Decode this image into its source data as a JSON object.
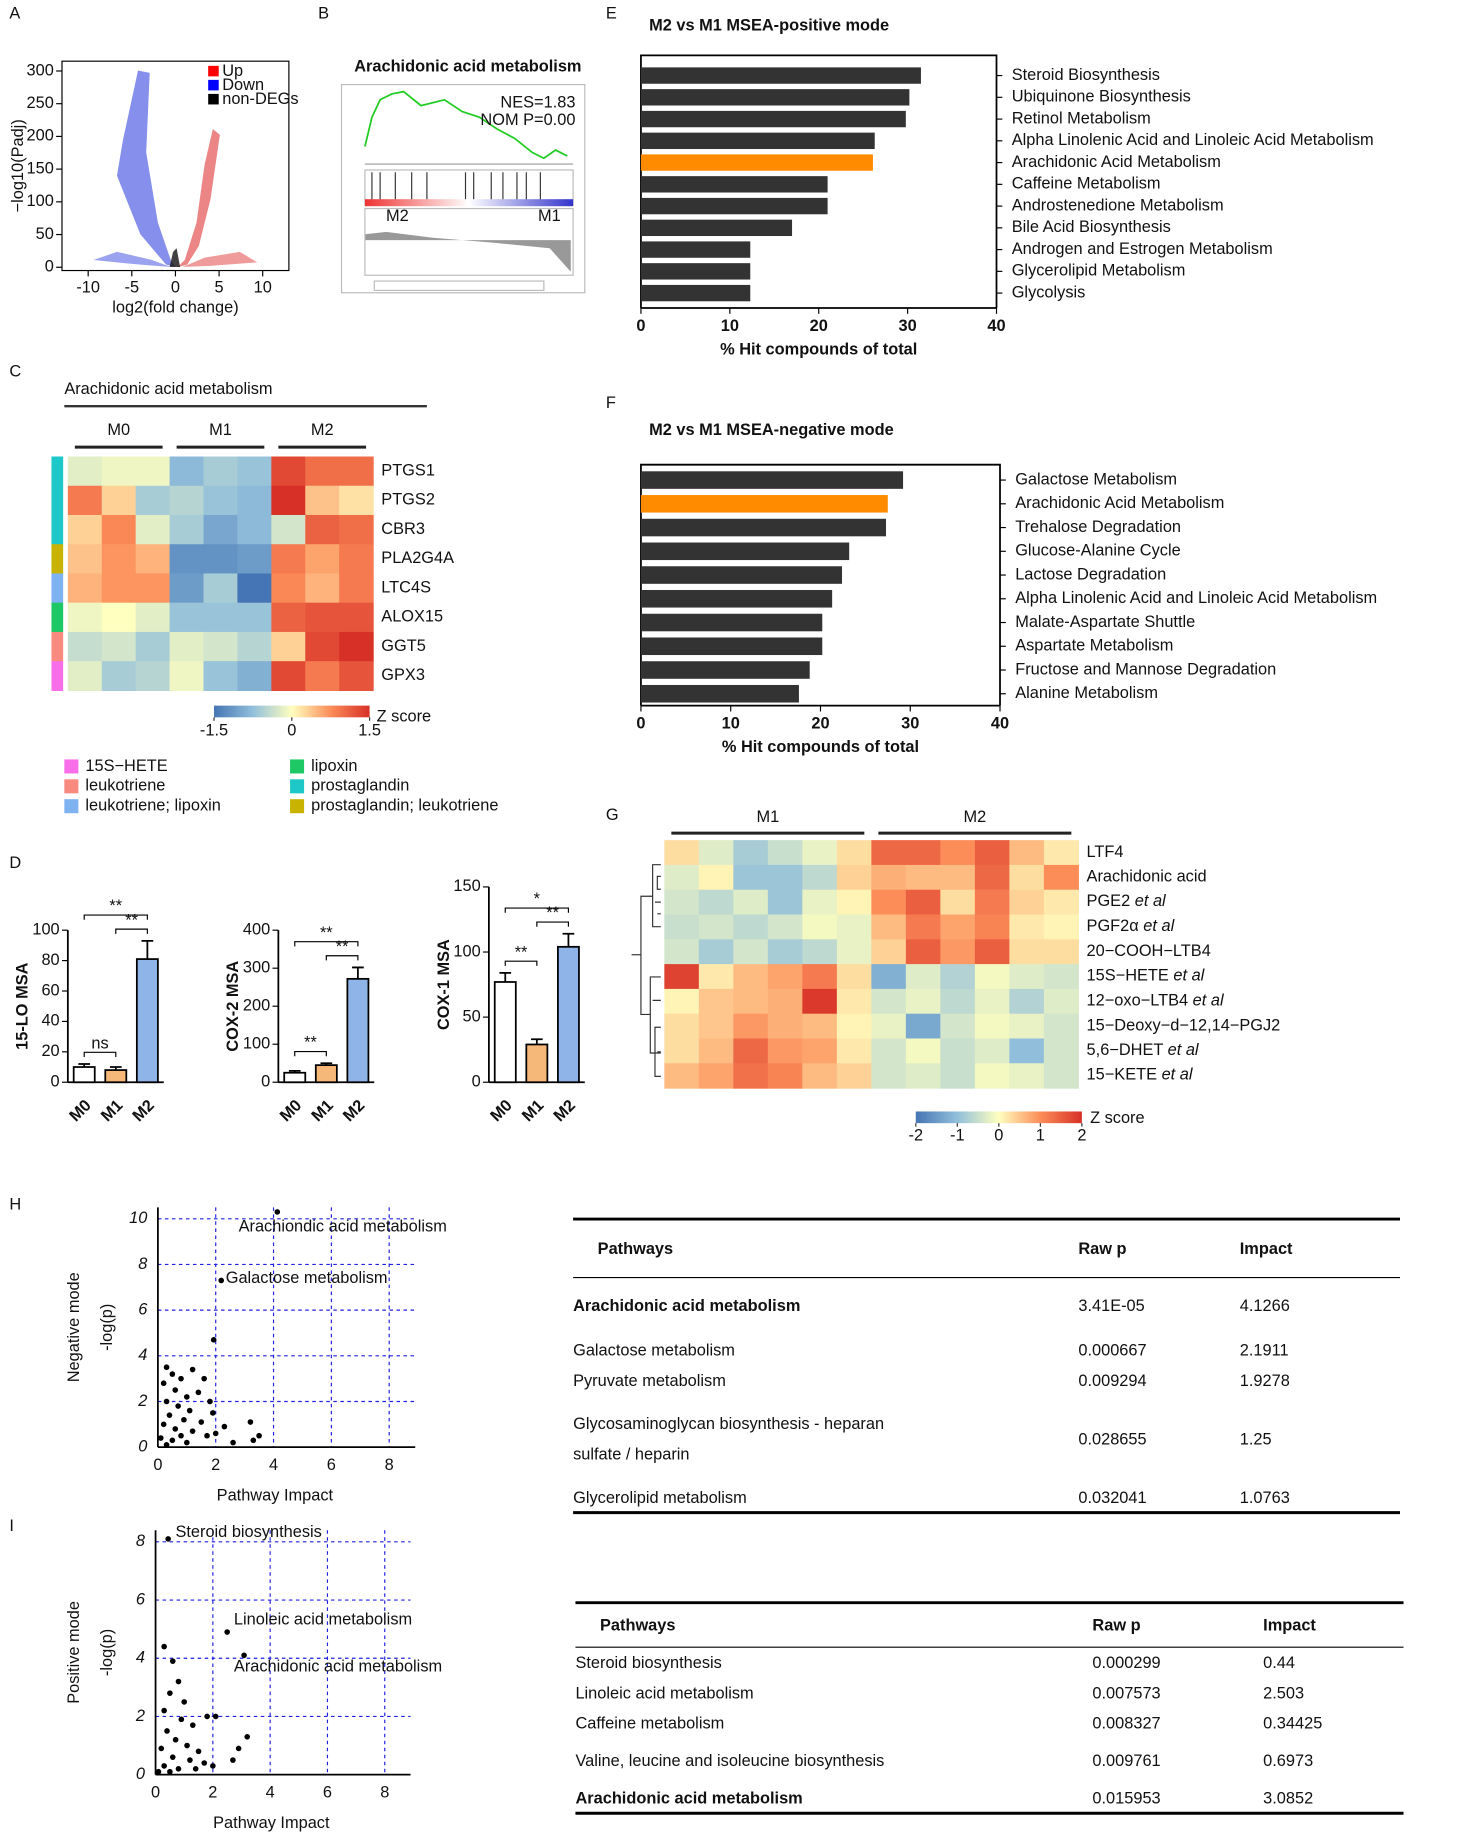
{
  "panel_labels": [
    "A",
    "B",
    "C",
    "D",
    "E",
    "F",
    "G",
    "H",
    "I"
  ],
  "chart_data": [
    {
      "type": "volcano",
      "xlabel": "log2(fold change)",
      "ylabel": "−log10(Padj)",
      "xlim": [
        -13,
        13
      ],
      "ylim": [
        -5,
        315
      ],
      "xticks": [
        -10,
        -5,
        0,
        5,
        10
      ],
      "yticks": [
        0,
        50,
        100,
        150,
        200,
        250,
        300
      ],
      "legend": [
        {
          "name": "Up",
          "color": "#ff0000"
        },
        {
          "name": "Down",
          "color": "#0000ff"
        },
        {
          "name": "non-DEGs",
          "color": "#000000"
        }
      ]
    },
    {
      "type": "gsea",
      "title": "Arachidonic acid metabolism",
      "annotations": [
        "NES=1.83",
        "NOM P=0.00"
      ],
      "groups": [
        "M2",
        "M1"
      ]
    },
    {
      "type": "heatmap",
      "title": "Arachidonic acid metabolism",
      "groups": [
        "M0",
        "M1",
        "M2"
      ],
      "rows": [
        "PTGS1",
        "PTGS2",
        "CBR3",
        "PLA2G4A",
        "LTC4S",
        "ALOX15",
        "GGT5",
        "GPX3"
      ],
      "values": [
        [
          -0.2,
          -0.1,
          -0.1,
          -0.8,
          -0.6,
          -0.7,
          1.3,
          1.0,
          1.0
        ],
        [
          0.9,
          0.3,
          -0.6,
          -0.5,
          -0.7,
          -0.8,
          1.5,
          0.4,
          0.2
        ],
        [
          0.3,
          0.8,
          -0.2,
          -0.6,
          -1.0,
          -0.8,
          -0.3,
          1.1,
          1.0
        ],
        [
          0.4,
          0.7,
          0.5,
          -1.2,
          -1.2,
          -1.1,
          0.9,
          0.6,
          0.9
        ],
        [
          0.5,
          0.7,
          0.7,
          -1.1,
          -0.6,
          -1.5,
          0.8,
          0.5,
          0.9
        ],
        [
          -0.1,
          0.0,
          -0.2,
          -0.7,
          -0.7,
          -0.7,
          1.1,
          1.2,
          1.2
        ],
        [
          -0.4,
          -0.3,
          -0.6,
          -0.2,
          -0.3,
          -0.5,
          0.3,
          1.3,
          1.6
        ],
        [
          -0.2,
          -0.6,
          -0.5,
          -0.1,
          -0.7,
          -0.9,
          1.3,
          0.9,
          1.2
        ]
      ],
      "row_colors": [
        "#1ec8c8",
        "#1ec8c8",
        "#1ec8c8",
        "#c8b400",
        "#7fb2f0",
        "#1ec864",
        "#f88a80",
        "#f86ee8"
      ],
      "legend": [
        {
          "name": "15S−HETE",
          "color": "#f86ee8"
        },
        {
          "name": "leukotriene",
          "color": "#f88a80"
        },
        {
          "name": "leukotriene; lipoxin",
          "color": "#7fb2f0"
        },
        {
          "name": "lipoxin",
          "color": "#1ec864"
        },
        {
          "name": "prostaglandin",
          "color": "#1ec8c8"
        },
        {
          "name": "prostaglandin; leukotriene",
          "color": "#c8b400"
        }
      ],
      "zlim": [
        -1.5,
        1.5
      ],
      "zticks": [
        -1.5,
        0,
        1.5
      ],
      "zlabel": "Z score",
      "colormap": [
        "#4575b4",
        "#91bfdb",
        "#ffffbf",
        "#fc8d59",
        "#d73027"
      ]
    },
    {
      "type": "bar",
      "ylabel": "15-LO MSA",
      "categories": [
        "M0",
        "M1",
        "M2"
      ],
      "values": [
        10,
        8,
        81
      ],
      "errors": [
        2,
        2,
        12
      ],
      "colors": [
        "#ffffff",
        "#f5b878",
        "#8fb4e8"
      ],
      "ylim": [
        0,
        100
      ],
      "yticks": [
        0,
        20,
        40,
        60,
        80,
        100
      ],
      "significance": [
        "ns",
        "**",
        "**"
      ]
    },
    {
      "type": "bar",
      "ylabel": "COX-2 MSA",
      "categories": [
        "M0",
        "M1",
        "M2"
      ],
      "values": [
        25,
        45,
        272
      ],
      "errors": [
        5,
        5,
        30
      ],
      "colors": [
        "#ffffff",
        "#f5b878",
        "#8fb4e8"
      ],
      "ylim": [
        0,
        400
      ],
      "yticks": [
        0,
        100,
        200,
        300,
        400
      ],
      "significance": [
        "**",
        "**",
        "**"
      ]
    },
    {
      "type": "bar",
      "ylabel": "COX-1 MSA",
      "categories": [
        "M0",
        "M1",
        "M2"
      ],
      "values": [
        77,
        29,
        104
      ],
      "errors": [
        7,
        4,
        10
      ],
      "colors": [
        "#ffffff",
        "#f5b878",
        "#8fb4e8"
      ],
      "ylim": [
        0,
        150
      ],
      "yticks": [
        0,
        50,
        100,
        150
      ],
      "significance": [
        "**",
        "**",
        "*"
      ]
    },
    {
      "type": "barh",
      "title": "M2 vs M1 MSEA-positive mode",
      "xlabel": "% Hit compounds of total",
      "categories": [
        "Steroid Biosynthesis",
        "Ubiquinone Biosynthesis",
        "Retinol Metabolism",
        "Alpha Linolenic Acid and Linoleic Acid Metabolism",
        "Arachidonic Acid Metabolism",
        "Caffeine Metabolism",
        "Androstenedione Metabolism",
        "Bile Acid Biosynthesis",
        "Androgen and Estrogen Metabolism",
        "Glycerolipid Metabolism",
        "Glycolysis"
      ],
      "values": [
        31.5,
        30.2,
        29.8,
        26.3,
        26.1,
        21,
        21,
        17,
        12.3,
        12.3,
        12.3
      ],
      "colors": [
        "#333333",
        "#333333",
        "#333333",
        "#333333",
        "#ff8c00",
        "#333333",
        "#333333",
        "#333333",
        "#333333",
        "#333333",
        "#333333"
      ],
      "xlim": [
        0,
        40
      ],
      "xticks": [
        0,
        10,
        20,
        30,
        40
      ]
    },
    {
      "type": "barh",
      "title": "M2 vs M1 MSEA-negative mode",
      "xlabel": "% Hit compounds of total",
      "categories": [
        "Galactose Metabolism",
        "Arachidonic Acid Metabolism",
        "Trehalose Degradation",
        "Glucose-Alanine Cycle",
        "Lactose Degradation",
        "Alpha Linolenic Acid and Linoleic Acid Metabolism",
        "Malate-Aspartate Shuttle",
        "Aspartate Metabolism",
        "Fructose and Mannose Degradation",
        "Alanine Metabolism"
      ],
      "values": [
        29.2,
        27.5,
        27.3,
        23.2,
        22.4,
        21.3,
        20.2,
        20.2,
        18.8,
        17.6
      ],
      "colors": [
        "#333333",
        "#ff8c00",
        "#333333",
        "#333333",
        "#333333",
        "#333333",
        "#333333",
        "#333333",
        "#333333",
        "#333333"
      ],
      "xlim": [
        0,
        40
      ],
      "xticks": [
        0,
        10,
        20,
        30,
        40
      ]
    },
    {
      "type": "heatmap",
      "groups": [
        "M1",
        "M2"
      ],
      "rows": [
        "LTF4",
        "Arachidonic acid",
        {
          "name": "PGE2 ",
          "suffix": "et al"
        },
        {
          "name": "PGF2α ",
          "suffix": "et al"
        },
        "20−COOH−LTB4",
        {
          "name": "15S−HETE ",
          "suffix": "et al"
        },
        {
          "name": "12−oxo−LTB4 ",
          "suffix": "et al"
        },
        "15−Deoxy−d−12,14−PGJ2",
        {
          "name": "5,6−DHET ",
          "suffix": "et al"
        },
        {
          "name": "15−KETE ",
          "suffix": "et al"
        }
      ],
      "values": [
        [
          0.3,
          -0.3,
          -0.8,
          -0.5,
          -0.2,
          0.3,
          1.4,
          1.4,
          1.0,
          1.5,
          0.6,
          0.2
        ],
        [
          -0.3,
          0.1,
          -0.9,
          -0.9,
          -0.6,
          0.4,
          0.7,
          0.6,
          0.6,
          1.4,
          0.3,
          1.0
        ],
        [
          -0.4,
          -0.6,
          -0.3,
          -0.9,
          -0.2,
          0.1,
          1.0,
          1.5,
          0.3,
          1.2,
          0.4,
          0.2
        ],
        [
          -0.5,
          -0.4,
          -0.6,
          -0.4,
          -0.1,
          -0.2,
          0.6,
          1.2,
          0.8,
          1.1,
          0.2,
          0.1
        ],
        [
          -0.4,
          -0.8,
          -0.4,
          -0.8,
          -0.6,
          -0.2,
          0.4,
          1.5,
          0.9,
          1.5,
          0.3,
          0.3
        ],
        [
          1.8,
          0.2,
          0.6,
          0.8,
          1.2,
          0.3,
          -1.2,
          -0.3,
          -0.7,
          -0.1,
          -0.3,
          -0.4
        ],
        [
          0.1,
          0.5,
          0.6,
          0.7,
          1.9,
          0.2,
          -0.4,
          -0.2,
          -0.6,
          -0.2,
          -0.7,
          -0.3
        ],
        [
          0.3,
          0.5,
          0.9,
          0.7,
          0.6,
          0.1,
          -0.2,
          -1.3,
          -0.4,
          -0.1,
          -0.2,
          -0.4
        ],
        [
          0.3,
          0.6,
          1.4,
          0.9,
          0.8,
          0.2,
          -0.4,
          -0.1,
          -0.5,
          -0.3,
          -1.0,
          -0.4
        ],
        [
          0.6,
          0.8,
          1.3,
          1.1,
          0.6,
          0.4,
          -0.4,
          -0.3,
          -0.5,
          -0.1,
          -0.2,
          -0.4
        ]
      ],
      "zlim": [
        -2,
        2
      ],
      "zticks": [
        -2,
        -1,
        0,
        1,
        2
      ],
      "zlabel": "Z score",
      "colormap": [
        "#4575b4",
        "#91bfdb",
        "#ffffbf",
        "#fc8d59",
        "#d73027"
      ]
    },
    {
      "type": "scatter",
      "title": "Negative mode",
      "ylabel": "-log(p)",
      "xlabel": "Pathway Impact",
      "xlim": [
        0,
        8.9
      ],
      "ylim": [
        0,
        10.5
      ],
      "xticks": [
        0,
        2,
        4,
        6,
        8
      ],
      "yticks": [
        0,
        2,
        4,
        6,
        8,
        10
      ],
      "grid": true,
      "grid_color": "#2020e0",
      "x": [
        4.13,
        2.19,
        1.93,
        0.3,
        0.5,
        0.8,
        1.2,
        1.6,
        0.2,
        0.6,
        1.0,
        1.4,
        1.8,
        0.3,
        0.7,
        1.1,
        0.4,
        0.9,
        1.5,
        0.2,
        0.6,
        1.2,
        1.7,
        0.1,
        0.5,
        1.0,
        2.0,
        3.2,
        3.5,
        3.3,
        2.6,
        0.3,
        0.8,
        1.9,
        2.3
      ],
      "values": [
        10.3,
        7.3,
        4.7,
        3.5,
        3.2,
        3.0,
        3.4,
        3.0,
        2.8,
        2.5,
        2.2,
        2.4,
        2.0,
        2.0,
        1.8,
        1.6,
        1.4,
        1.2,
        1.1,
        1.0,
        0.8,
        0.7,
        0.5,
        0.4,
        0.3,
        0.2,
        0.6,
        1.1,
        0.5,
        0.3,
        0.2,
        0.1,
        0.5,
        1.5,
        0.9
      ],
      "annotations": [
        "Arachiondic acid metabolism",
        "Galactose metabolism"
      ]
    },
    {
      "type": "scatter",
      "title": "Positive mode",
      "ylabel": "-log(p)",
      "xlabel": "Pathway Impact",
      "xlim": [
        0,
        8.9
      ],
      "ylim": [
        0,
        8.4
      ],
      "xticks": [
        0,
        2,
        4,
        6,
        8
      ],
      "yticks": [
        0,
        2,
        4,
        6,
        8
      ],
      "grid": true,
      "grid_color": "#2020e0",
      "x": [
        0.44,
        2.5,
        3.09,
        0.3,
        0.6,
        0.8,
        0.5,
        1.0,
        0.3,
        0.9,
        1.3,
        1.8,
        2.1,
        0.4,
        0.7,
        1.1,
        1.5,
        0.2,
        0.6,
        1.2,
        1.7,
        0.3,
        0.8,
        2.0,
        2.9,
        3.2,
        2.7,
        0.1,
        1.4,
        0.5
      ],
      "values": [
        8.1,
        4.9,
        4.1,
        4.4,
        3.9,
        3.2,
        2.8,
        2.5,
        2.2,
        1.9,
        1.7,
        2.0,
        2.0,
        1.5,
        1.2,
        1.0,
        0.8,
        0.9,
        0.6,
        0.5,
        0.4,
        0.3,
        0.2,
        0.3,
        0.9,
        1.3,
        0.5,
        0.1,
        0.2,
        0.1
      ],
      "annotations": [
        "Steroid biosynthesis",
        "Linoleic acid metabolism",
        "Arachidonic acid metabolism"
      ]
    }
  ],
  "tables": [
    {
      "columns": [
        "Pathways",
        "Raw p",
        "Impact"
      ],
      "rows": [
        [
          "Arachidonic acid metabolism",
          "3.41E-05",
          "4.1266"
        ],
        [
          "Galactose metabolism",
          "0.000667",
          "2.1911"
        ],
        [
          "Pyruvate metabolism",
          "0.009294",
          "1.9278"
        ],
        [
          [
            "Glycosaminoglycan biosynthesis - heparan",
            "sulfate / heparin"
          ],
          "0.028655",
          "1.25"
        ],
        [
          "Glycerolipid metabolism",
          "0.032041",
          "1.0763"
        ]
      ],
      "highlight_rows": [
        0
      ],
      "highlight_color": "#ff0000"
    },
    {
      "columns": [
        "Pathways",
        "Raw p",
        "Impact"
      ],
      "rows": [
        [
          "Steroid biosynthesis",
          "0.000299",
          "0.44"
        ],
        [
          "Linoleic acid metabolism",
          "0.007573",
          "2.503"
        ],
        [
          "Caffeine metabolism",
          "0.008327",
          "0.34425"
        ],
        [
          "Valine, leucine and isoleucine biosynthesis",
          "0.009761",
          "0.6973"
        ],
        [
          "Arachidonic acid metabolism",
          "0.015953",
          "3.0852"
        ]
      ],
      "highlight_rows": [
        4
      ],
      "highlight_color": "#ff0000"
    }
  ]
}
